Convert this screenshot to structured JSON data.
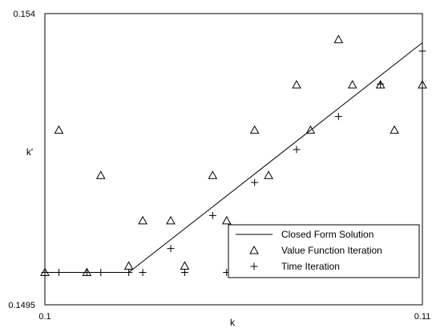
{
  "chart_data": {
    "type": "line",
    "title": "",
    "xlabel": "k",
    "ylabel": "k'",
    "xlim": [
      0.1,
      0.11
    ],
    "ylim": [
      0.1495,
      0.154
    ],
    "x_tick_labels": [
      "0.1",
      "0.11"
    ],
    "y_tick_labels": [
      "0.154",
      "0.1495"
    ],
    "grid": false,
    "legend_position": "bottom-right",
    "series": [
      {
        "name": "Closed Form Solution",
        "marker": "none",
        "x": [
          0.1,
          0.102222,
          0.11
        ],
        "y": [
          0.15,
          0.15,
          0.15355
        ]
      },
      {
        "name": "Value Function Iteration",
        "marker": "triangle",
        "x": [
          0.1,
          0.101111,
          0.102222,
          0.103333,
          0.104444,
          0.105556,
          0.106667,
          0.107778,
          0.108889,
          0.11,
          0.10037,
          0.101481,
          0.102593,
          0.103704,
          0.104815,
          0.105926,
          0.107037,
          0.108148,
          0.109259
        ],
        "y": [
          0.15,
          0.15,
          0.1501,
          0.1508,
          0.1515,
          0.1522,
          0.1529,
          0.1536,
          0.1529,
          0.1529,
          0.1522,
          0.1515,
          0.1508,
          0.1501,
          0.1508,
          0.1515,
          0.1522,
          0.1529,
          0.1522
        ]
      },
      {
        "name": "Time Iteration",
        "marker": "plus",
        "x": [
          0.1,
          0.101111,
          0.102222,
          0.103333,
          0.104444,
          0.105556,
          0.106667,
          0.107778,
          0.108889,
          0.11,
          0.10037,
          0.101481,
          0.102593,
          0.103704,
          0.104815,
          0.105926,
          0.107037,
          0.108148,
          0.109259
        ],
        "y": [
          0.15,
          0.15,
          0.15,
          0.15037,
          0.15088,
          0.15139,
          0.1519,
          0.15241,
          0.15291,
          0.15342,
          0.15,
          0.15,
          0.15,
          0.15,
          0.15,
          0.15,
          0.15,
          0.15,
          0.15
        ]
      }
    ]
  }
}
